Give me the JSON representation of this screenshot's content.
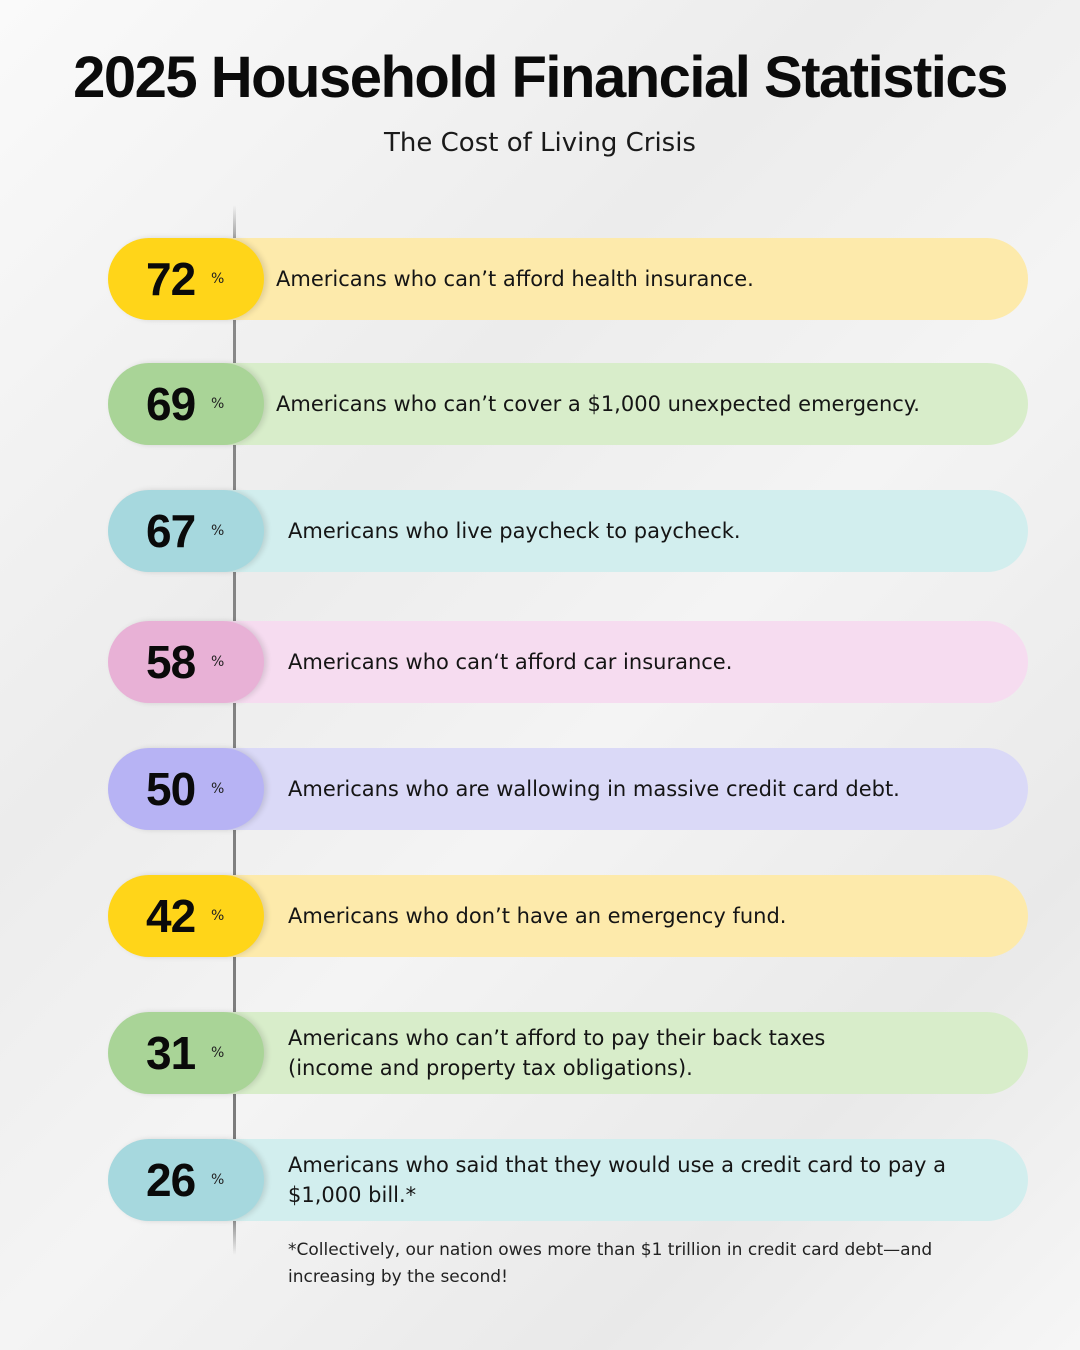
{
  "header": {
    "title": "2025 Household Financial Statistics",
    "subtitle": "The Cost of Living Crisis"
  },
  "chart_data": {
    "type": "table",
    "unit": "%",
    "items": [
      {
        "value": 72,
        "label": "Americans who can’t afford health insurance.",
        "pill_color": "#FFD519",
        "bar_color": "#FDEAAB"
      },
      {
        "value": 69,
        "label": "Americans who can’t cover a $1,000 unexpected emergency.",
        "pill_color": "#A9D497",
        "bar_color": "#D8EDCA"
      },
      {
        "value": 67,
        "label": "Americans who live paycheck to paycheck.",
        "pill_color": "#A6D8DE",
        "bar_color": "#D2EEEE"
      },
      {
        "value": 58,
        "label": "Americans who can‘t afford car insurance.",
        "pill_color": "#E8B1D6",
        "bar_color": "#F6DCF0"
      },
      {
        "value": 50,
        "label": "Americans who are wallowing in massive credit card debt.",
        "pill_color": "#B7B3F4",
        "bar_color": "#DAD9F7"
      },
      {
        "value": 42,
        "label": "Americans who don’t have an emergency fund.",
        "pill_color": "#FFD519",
        "bar_color": "#FDEAAB"
      },
      {
        "value": 31,
        "label": "Americans who can’t afford to pay their back taxes\n(income and property tax obligations).",
        "pill_color": "#A9D497",
        "bar_color": "#D8EDCA"
      },
      {
        "value": 26,
        "label": "Americans who said that they would use a credit card to pay a\n$1,000 bill.*",
        "pill_color": "#A6D8DE",
        "bar_color": "#D2EEEE"
      }
    ]
  },
  "footnote": "*Collectively, our nation owes more than $1 trillion in credit card debt—and increasing by the second!"
}
